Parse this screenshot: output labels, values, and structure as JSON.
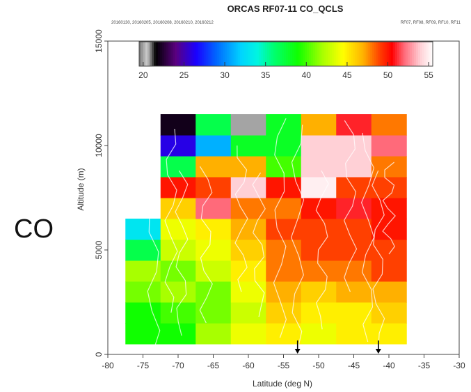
{
  "side_label": "CO",
  "chart_data": {
    "type": "heatmap",
    "title": "ORCAS RF07-11 CO_QCLS",
    "subtitle_left": "20160130, 20160205, 20160208, 20160210, 20160212",
    "subtitle_right": "RF07, RF08, RF09, RF10, RF11",
    "xlabel": "Latitude (deg N)",
    "ylabel": "Altitude (m)",
    "xlim": [
      -80,
      -30
    ],
    "ylim": [
      0,
      15000
    ],
    "x_ticks": [
      -80,
      -75,
      -70,
      -65,
      -60,
      -55,
      -50,
      -45,
      -40,
      -35,
      -30
    ],
    "y_ticks": [
      0,
      5000,
      10000,
      15000
    ],
    "colorbar": {
      "range": [
        20,
        55
      ],
      "ticks": [
        20,
        25,
        30,
        35,
        40,
        45,
        50,
        55
      ],
      "stops": [
        {
          "v": 19.5,
          "color": "#777777"
        },
        {
          "v": 20.5,
          "color": "#d0d0d0"
        },
        {
          "v": 21.5,
          "color": "#000000"
        },
        {
          "v": 24,
          "color": "#5a0080"
        },
        {
          "v": 26.5,
          "color": "#1a00ff"
        },
        {
          "v": 29,
          "color": "#0068ff"
        },
        {
          "v": 32,
          "color": "#00d4ff"
        },
        {
          "v": 34,
          "color": "#00f5e0"
        },
        {
          "v": 36,
          "color": "#00ff70"
        },
        {
          "v": 39,
          "color": "#10ff00"
        },
        {
          "v": 42,
          "color": "#a8ff00"
        },
        {
          "v": 44.5,
          "color": "#ffff00"
        },
        {
          "v": 47,
          "color": "#ffb000"
        },
        {
          "v": 49,
          "color": "#ff4000"
        },
        {
          "v": 50.5,
          "color": "#ff0000"
        },
        {
          "v": 52,
          "color": "#ff6a7a"
        },
        {
          "v": 54,
          "color": "#ffd0d6"
        },
        {
          "v": 55.5,
          "color": "#ffffff"
        }
      ]
    },
    "cell_lat_edges": [
      -77.5,
      -72.5,
      -67.5,
      -62.5,
      -57.5,
      -52.5,
      -47.5,
      -42.5,
      -37.5
    ],
    "cell_alt_edges": [
      500,
      1500,
      2500,
      3500,
      4500,
      5500,
      6500,
      7500,
      8500,
      9500,
      10500,
      11500
    ],
    "grid": [
      [
        39,
        39,
        42,
        44,
        45,
        44,
        45,
        45
      ],
      [
        39,
        40,
        41,
        43,
        46,
        45,
        45,
        46
      ],
      [
        41,
        42,
        41,
        44,
        47,
        46,
        47,
        47
      ],
      [
        42,
        41,
        43,
        45,
        48,
        48,
        48,
        49
      ],
      [
        37,
        43,
        44,
        46,
        48,
        49,
        49,
        49
      ],
      [
        33,
        44,
        45,
        47,
        49,
        49,
        49,
        50
      ],
      [
        null,
        46,
        52,
        48,
        48,
        50,
        51,
        50
      ],
      [
        null,
        50,
        49,
        54,
        50,
        55,
        49,
        49
      ],
      [
        null,
        37,
        47,
        47,
        40,
        54,
        54,
        48
      ],
      [
        null,
        26,
        31,
        38,
        38,
        54,
        54,
        52
      ],
      [
        null,
        22,
        37,
        20,
        38,
        47,
        51,
        48
      ]
    ],
    "arrow_markers_lat": [
      -53,
      -41.5
    ]
  }
}
